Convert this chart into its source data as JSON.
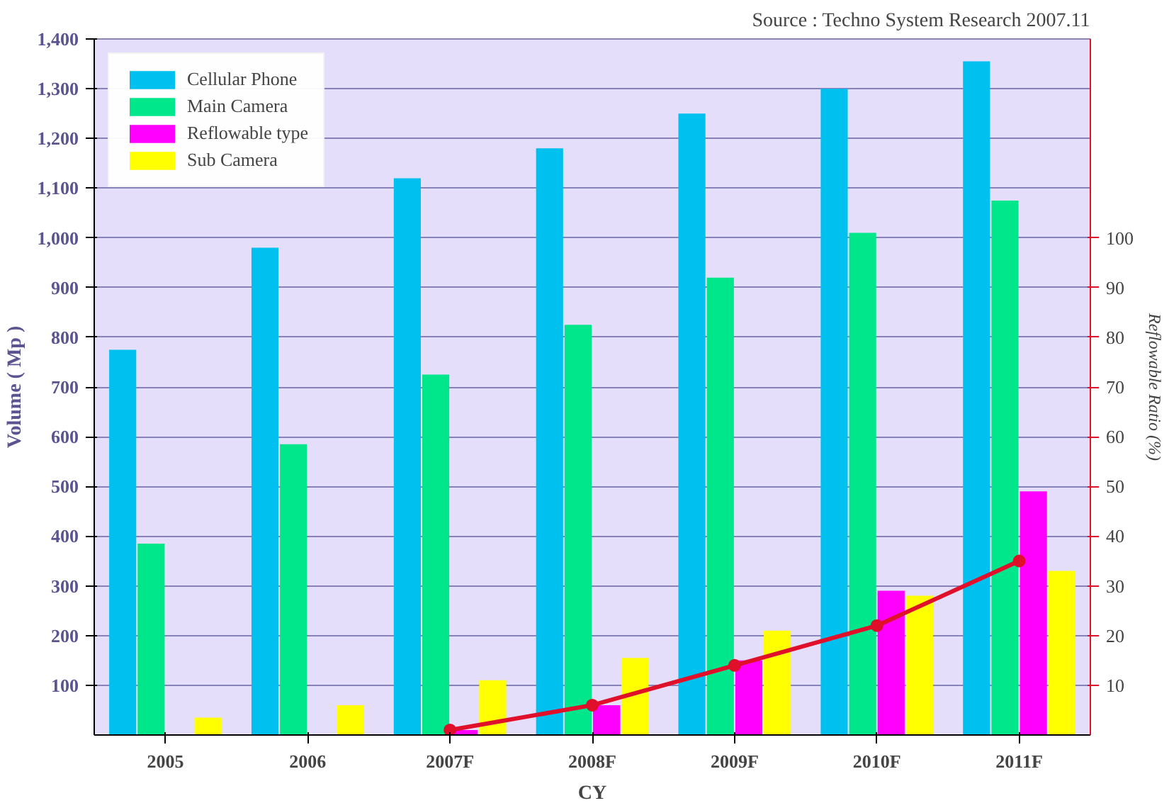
{
  "chart_data": {
    "type": "bar",
    "categories": [
      "2005",
      "2006",
      "2007F",
      "2008F",
      "2009F",
      "2010F",
      "2011F"
    ],
    "xlabel": "CY",
    "ylabel": "Volume ( Mp )",
    "y2label": "Reflowable Ratio (%)",
    "annotations": [
      "Source : Techno System Research 2007.11"
    ],
    "series": [
      {
        "name": "Cellular Phone",
        "color": "#00c0f0",
        "values": [
          775,
          980,
          1120,
          1180,
          1250,
          1300,
          1355
        ]
      },
      {
        "name": "Main Camera",
        "color": "#00e68a",
        "values": [
          385,
          585,
          725,
          825,
          920,
          1010,
          1075
        ]
      },
      {
        "name": "Reflowable type",
        "color": "#ff00ff",
        "values": [
          null,
          null,
          10,
          60,
          150,
          290,
          490
        ]
      },
      {
        "name": "Sub Camera",
        "color": "#ffff00",
        "values": [
          35,
          60,
          110,
          155,
          210,
          280,
          330
        ]
      },
      {
        "type": "line",
        "axis": "y2",
        "color": "#e0102a",
        "marker": "circle",
        "values": [
          null,
          null,
          1,
          6,
          14,
          22,
          35
        ]
      }
    ],
    "ylim": [
      0,
      1400
    ],
    "yticks": [
      100,
      200,
      300,
      400,
      500,
      600,
      700,
      800,
      900,
      {
        "value": 1000,
        "label": "1,000"
      },
      {
        "value": 1100,
        "label": "1,100"
      },
      {
        "value": 1200,
        "label": "1,200"
      },
      {
        "value": 1300,
        "label": "1,300"
      },
      {
        "value": 1400,
        "label": "1,400"
      }
    ],
    "y2lim": [
      0,
      140
    ],
    "y2ticks": [
      10,
      20,
      30,
      40,
      50,
      60,
      70,
      80,
      90,
      100
    ],
    "grid": "y",
    "legend": "top left"
  }
}
